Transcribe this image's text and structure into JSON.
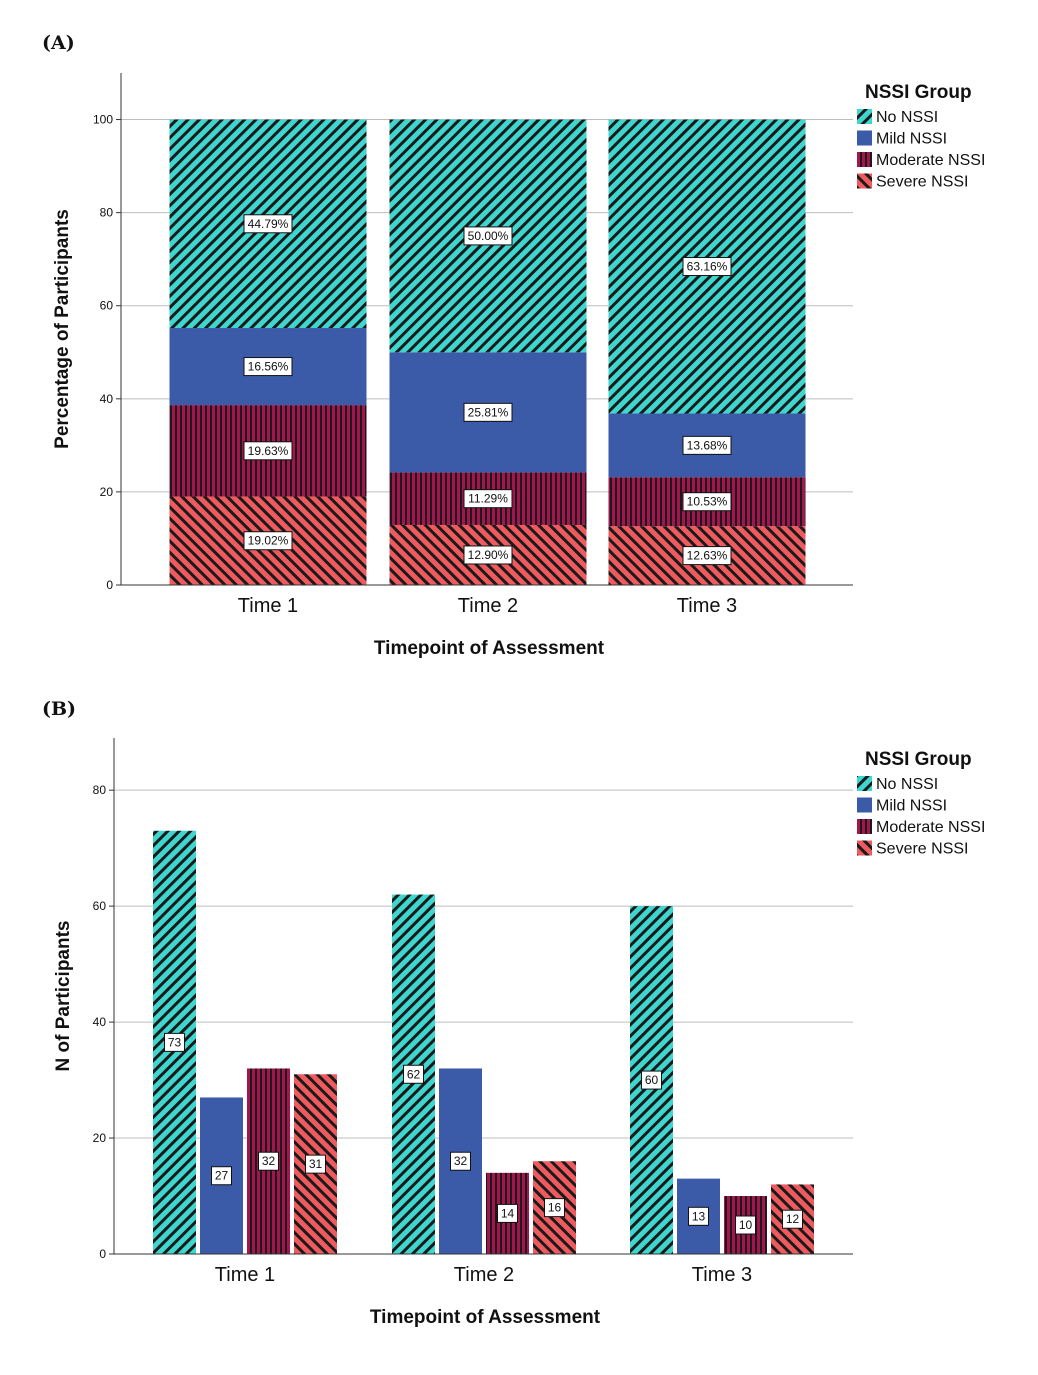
{
  "panels": [
    {
      "letter": "(A)"
    },
    {
      "letter": "(B)"
    }
  ],
  "legend": {
    "title": "NSSI Group",
    "groups": [
      "No NSSI",
      "Mild NSSI",
      "Moderate NSSI",
      "Severe NSSI"
    ],
    "colors": [
      "#3fd6cf",
      "#3b5aa8",
      "#a3154c",
      "#ef5a5f"
    ],
    "patterns": [
      "diagonal-forward",
      "solid",
      "vertical",
      "diagonal-backward"
    ]
  },
  "chart_data": [
    {
      "type": "bar",
      "stacked": true,
      "categories": [
        "Time 1",
        "Time 2",
        "Time 3"
      ],
      "series": [
        {
          "name": "No NSSI",
          "values": [
            44.79,
            50.0,
            63.16
          ],
          "labels": [
            "44.79%",
            "50.00%",
            "63.16%"
          ]
        },
        {
          "name": "Mild NSSI",
          "values": [
            16.56,
            25.81,
            13.68
          ],
          "labels": [
            "16.56%",
            "25.81%",
            "13.68%"
          ]
        },
        {
          "name": "Moderate NSSI",
          "values": [
            19.63,
            11.29,
            10.53
          ],
          "labels": [
            "19.63%",
            "11.29%",
            "10.53%"
          ]
        },
        {
          "name": "Severe NSSI",
          "values": [
            19.02,
            12.9,
            12.63
          ],
          "labels": [
            "19.02%",
            "12.90%",
            "12.63%"
          ]
        }
      ],
      "xlabel": "Timepoint of Assessment",
      "ylabel": "Percentage of Participants",
      "ylim": [
        0,
        110
      ],
      "yticks": [
        0,
        20,
        40,
        60,
        80,
        100
      ],
      "grid": true,
      "legend_position": "right"
    },
    {
      "type": "bar",
      "stacked": false,
      "categories": [
        "Time 1",
        "Time 2",
        "Time 3"
      ],
      "series": [
        {
          "name": "No NSSI",
          "values": [
            73,
            62,
            60
          ],
          "labels": [
            "73",
            "62",
            "60"
          ]
        },
        {
          "name": "Mild NSSI",
          "values": [
            27,
            32,
            13
          ],
          "labels": [
            "27",
            "32",
            "13"
          ]
        },
        {
          "name": "Moderate NSSI",
          "values": [
            32,
            14,
            10
          ],
          "labels": [
            "32",
            "14",
            "10"
          ]
        },
        {
          "name": "Severe NSSI",
          "values": [
            31,
            16,
            12
          ],
          "labels": [
            "31",
            "16",
            "12"
          ]
        }
      ],
      "xlabel": "Timepoint of Assessment",
      "ylabel": "N of Participants",
      "ylim": [
        0,
        89
      ],
      "yticks": [
        0,
        20,
        40,
        60,
        80
      ],
      "grid": true,
      "legend_position": "right"
    }
  ]
}
